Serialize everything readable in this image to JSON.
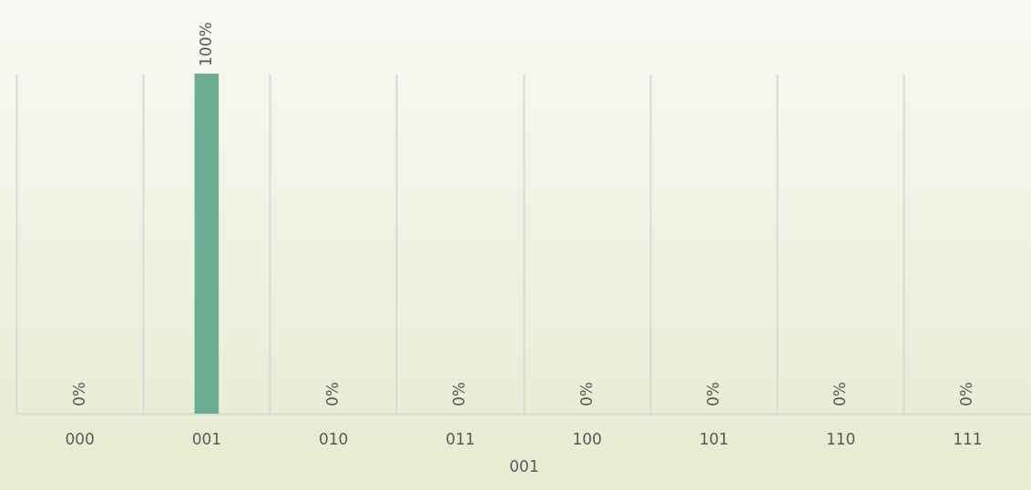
{
  "chart_data": {
    "type": "bar",
    "xlabel": "001",
    "categories": [
      "000",
      "001",
      "010",
      "011",
      "100",
      "101",
      "110",
      "111"
    ],
    "values": [
      0,
      100,
      0,
      0,
      0,
      0,
      0,
      0
    ],
    "value_labels": [
      "0%",
      "100%",
      "0%",
      "0%",
      "0%",
      "0%",
      "0%",
      "0%"
    ],
    "color": "#69ad92",
    "grid": "x",
    "tick_labels": "x"
  }
}
